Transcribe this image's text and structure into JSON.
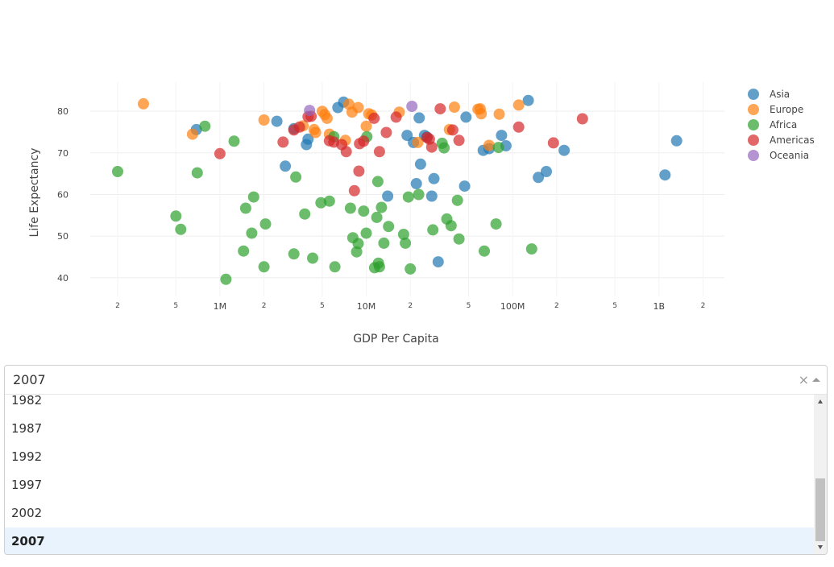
{
  "chart_data": {
    "type": "scatter",
    "xlabel": "GDP Per Capita",
    "ylabel": "Life Expectancy",
    "x_scale": "log",
    "xlim": [
      130000,
      2800000000
    ],
    "ylim": [
      35.5,
      87
    ],
    "grid": true,
    "legend_position": "top-right",
    "x_major_ticks": [
      {
        "value": 1000000,
        "label": "1M"
      },
      {
        "value": 10000000,
        "label": "10M"
      },
      {
        "value": 100000000,
        "label": "100M"
      },
      {
        "value": 1000000000,
        "label": "1B"
      }
    ],
    "x_minor_ticks": [
      {
        "value": 200000,
        "label": "2"
      },
      {
        "value": 500000,
        "label": "5"
      },
      {
        "value": 2000000,
        "label": "2"
      },
      {
        "value": 5000000,
        "label": "5"
      },
      {
        "value": 20000000,
        "label": "2"
      },
      {
        "value": 50000000,
        "label": "5"
      },
      {
        "value": 200000000,
        "label": "2"
      },
      {
        "value": 500000000,
        "label": "5"
      },
      {
        "value": 2000000000,
        "label": "2"
      }
    ],
    "y_ticks": [
      40,
      50,
      60,
      70,
      80
    ],
    "series": [
      {
        "name": "Asia",
        "color": "#1f77b4",
        "points": [
          [
            690000,
            75.6
          ],
          [
            2450000,
            77.6
          ],
          [
            2800000,
            66.8
          ],
          [
            3200000,
            75.8
          ],
          [
            3900000,
            72.0
          ],
          [
            4000000,
            73.3
          ],
          [
            6400000,
            80.9
          ],
          [
            7000000,
            82.2
          ],
          [
            14000000,
            59.6
          ],
          [
            19000000,
            74.2
          ],
          [
            21000000,
            72.5
          ],
          [
            22000000,
            62.6
          ],
          [
            23000000,
            78.4
          ],
          [
            23500000,
            67.3
          ],
          [
            25000000,
            74.2
          ],
          [
            26000000,
            73.8
          ],
          [
            28000000,
            59.6
          ],
          [
            29000000,
            63.8
          ],
          [
            31000000,
            43.8
          ],
          [
            47000000,
            62.0
          ],
          [
            48000000,
            78.6
          ],
          [
            63000000,
            70.6
          ],
          [
            69000000,
            71.0
          ],
          [
            84000000,
            74.2
          ],
          [
            90000000,
            71.7
          ],
          [
            128000000,
            82.6
          ],
          [
            150000000,
            64.1
          ],
          [
            170000000,
            65.5
          ],
          [
            225000000,
            70.6
          ],
          [
            1100000000,
            64.7
          ],
          [
            1320000000,
            72.9
          ]
        ]
      },
      {
        "name": "Europe",
        "color": "#ff7f0e",
        "points": [
          [
            300000,
            81.8
          ],
          [
            650000,
            74.5
          ],
          [
            2000000,
            77.9
          ],
          [
            3700000,
            76.5
          ],
          [
            4400000,
            75.6
          ],
          [
            4500000,
            74.9
          ],
          [
            5000000,
            80.0
          ],
          [
            5200000,
            79.2
          ],
          [
            5400000,
            78.3
          ],
          [
            5600000,
            74.5
          ],
          [
            7200000,
            73.0
          ],
          [
            7600000,
            81.7
          ],
          [
            8000000,
            79.8
          ],
          [
            8800000,
            80.9
          ],
          [
            10000000,
            76.4
          ],
          [
            10400000,
            79.4
          ],
          [
            10900000,
            79.1
          ],
          [
            16800000,
            79.8
          ],
          [
            22500000,
            72.5
          ],
          [
            37000000,
            75.6
          ],
          [
            40000000,
            81.0
          ],
          [
            58000000,
            80.5
          ],
          [
            60000000,
            80.6
          ],
          [
            61000000,
            79.4
          ],
          [
            69000000,
            71.8
          ],
          [
            81000000,
            79.3
          ],
          [
            110000000,
            81.5
          ]
        ]
      },
      {
        "name": "Africa",
        "color": "#2ca02c",
        "points": [
          [
            200000,
            65.5
          ],
          [
            500000,
            54.8
          ],
          [
            540000,
            51.6
          ],
          [
            700000,
            65.2
          ],
          [
            790000,
            76.4
          ],
          [
            1100000,
            39.6
          ],
          [
            1250000,
            72.8
          ],
          [
            1450000,
            46.4
          ],
          [
            1500000,
            56.7
          ],
          [
            1650000,
            50.7
          ],
          [
            1700000,
            59.4
          ],
          [
            2000000,
            42.6
          ],
          [
            2050000,
            52.9
          ],
          [
            3200000,
            45.7
          ],
          [
            3300000,
            64.2
          ],
          [
            3800000,
            55.3
          ],
          [
            4300000,
            44.7
          ],
          [
            4900000,
            58.0
          ],
          [
            5600000,
            58.4
          ],
          [
            6000000,
            73.9
          ],
          [
            6100000,
            42.6
          ],
          [
            7800000,
            56.7
          ],
          [
            8100000,
            49.6
          ],
          [
            8600000,
            46.2
          ],
          [
            8800000,
            48.2
          ],
          [
            9600000,
            56.0
          ],
          [
            10000000,
            50.7
          ],
          [
            10100000,
            73.9
          ],
          [
            11400000,
            42.4
          ],
          [
            11800000,
            54.5
          ],
          [
            12000000,
            63.1
          ],
          [
            12100000,
            43.5
          ],
          [
            12300000,
            42.6
          ],
          [
            12700000,
            56.9
          ],
          [
            13200000,
            48.3
          ],
          [
            14200000,
            52.3
          ],
          [
            18000000,
            50.4
          ],
          [
            18500000,
            48.3
          ],
          [
            19400000,
            59.4
          ],
          [
            20000000,
            42.1
          ],
          [
            22800000,
            60.0
          ],
          [
            28500000,
            51.5
          ],
          [
            33000000,
            72.3
          ],
          [
            34000000,
            71.2
          ],
          [
            35500000,
            54.1
          ],
          [
            38000000,
            52.5
          ],
          [
            42000000,
            58.6
          ],
          [
            43000000,
            49.3
          ],
          [
            64000000,
            46.4
          ],
          [
            77000000,
            52.9
          ],
          [
            80000000,
            71.3
          ],
          [
            135000000,
            46.9
          ]
        ]
      },
      {
        "name": "Americas",
        "color": "#d62728",
        "points": [
          [
            1000000,
            69.8
          ],
          [
            2700000,
            72.6
          ],
          [
            3200000,
            75.5
          ],
          [
            3500000,
            76.2
          ],
          [
            4000000,
            78.7
          ],
          [
            4200000,
            78.8
          ],
          [
            5600000,
            72.9
          ],
          [
            6000000,
            72.6
          ],
          [
            6800000,
            72.0
          ],
          [
            7300000,
            70.3
          ],
          [
            8300000,
            60.9
          ],
          [
            8900000,
            65.6
          ],
          [
            9000000,
            72.2
          ],
          [
            9600000,
            72.8
          ],
          [
            11300000,
            78.3
          ],
          [
            12300000,
            70.3
          ],
          [
            13700000,
            74.9
          ],
          [
            16000000,
            78.6
          ],
          [
            26000000,
            73.7
          ],
          [
            27000000,
            73.3
          ],
          [
            28000000,
            71.4
          ],
          [
            32000000,
            80.6
          ],
          [
            39000000,
            75.5
          ],
          [
            43000000,
            73.0
          ],
          [
            110000000,
            76.2
          ],
          [
            190000000,
            72.4
          ],
          [
            300000000,
            78.2
          ]
        ]
      },
      {
        "name": "Oceania",
        "color": "#9467bd",
        "points": [
          [
            4100000,
            80.2
          ],
          [
            20500000,
            81.2
          ]
        ]
      }
    ]
  },
  "dropdown": {
    "selected_value": "2007",
    "clear_icon": "×",
    "options": [
      "1982",
      "1987",
      "1992",
      "1997",
      "2002",
      "2007"
    ],
    "selected_index": 5
  }
}
